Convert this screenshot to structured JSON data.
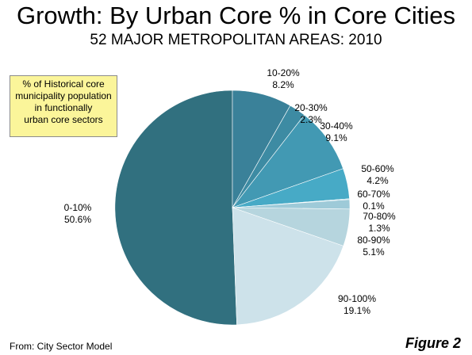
{
  "chart_data": {
    "type": "pie",
    "title": "Growth: By Urban Core % in Core Cities",
    "subtitle": "52 MAJOR METROPOLITAN AREAS: 2010",
    "slices": [
      {
        "label": "0-10%",
        "value": 50.6,
        "value_label": "50.6%",
        "color": "#31707f"
      },
      {
        "label": "10-20%",
        "value": 8.2,
        "value_label": "8.2%",
        "color": "#3a8199"
      },
      {
        "label": "20-30%",
        "value": 2.3,
        "value_label": "2.3%",
        "color": "#3d8ba3"
      },
      {
        "label": "30-40%",
        "value": 9.1,
        "value_label": "9.1%",
        "color": "#4299b3"
      },
      {
        "label": "50-60%",
        "value": 4.2,
        "value_label": "4.2%",
        "color": "#47aac6"
      },
      {
        "label": "60-70%",
        "value": 0.1,
        "value_label": "0.1%",
        "color": "#6fbad0"
      },
      {
        "label": "70-80%",
        "value": 1.3,
        "value_label": "1.3%",
        "color": "#9ecad8"
      },
      {
        "label": "80-90%",
        "value": 5.1,
        "value_label": "5.1%",
        "color": "#b6d5de"
      },
      {
        "label": "90-100%",
        "value": 19.1,
        "value_label": "19.1%",
        "color": "#cde2ea"
      }
    ]
  },
  "note": {
    "lines": [
      "% of Historical core",
      "municipality population",
      "in functionally",
      "urban core sectors"
    ],
    "background": "#fbf59a"
  },
  "source": "From: City Sector Model",
  "figure_label": "Figure 2"
}
